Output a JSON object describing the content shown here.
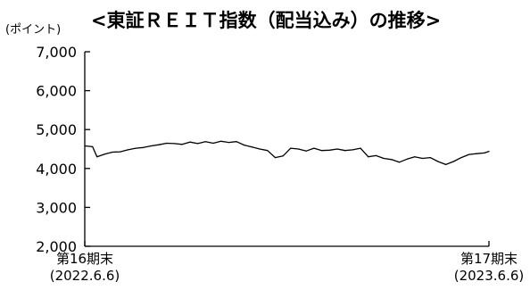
{
  "chart_data": {
    "type": "line",
    "title": "<東証ＲＥＩＴ指数（配当込み）の推移>",
    "unit_label": "(ポイント)",
    "xlabel": "",
    "ylabel": "",
    "ylim": [
      2000,
      7000
    ],
    "y_ticks": [
      {
        "value": 7000,
        "label": "7,000"
      },
      {
        "value": 6000,
        "label": "6,000"
      },
      {
        "value": 5000,
        "label": "5,000"
      },
      {
        "value": 4000,
        "label": "4,000"
      },
      {
        "value": 3000,
        "label": "3,000"
      },
      {
        "value": 2000,
        "label": "2,000"
      }
    ],
    "x_range": [
      "2022-06-06",
      "2023-06-06"
    ],
    "x_labels": [
      {
        "date": "2022-06-06",
        "line1": "第16期末",
        "line2": "(2022.6.6)"
      },
      {
        "date": "2023-06-06",
        "line1": "第17期末",
        "line2": "(2023.6.6)"
      }
    ],
    "grid": false,
    "line_color": "#000000",
    "series": [
      {
        "points": [
          [
            "2022-06-06",
            4580
          ],
          [
            "2022-06-13",
            4560
          ],
          [
            "2022-06-17",
            4300
          ],
          [
            "2022-06-24",
            4370
          ],
          [
            "2022-07-01",
            4420
          ],
          [
            "2022-07-08",
            4430
          ],
          [
            "2022-07-15",
            4480
          ],
          [
            "2022-07-22",
            4520
          ],
          [
            "2022-07-29",
            4540
          ],
          [
            "2022-08-05",
            4580
          ],
          [
            "2022-08-12",
            4610
          ],
          [
            "2022-08-19",
            4650
          ],
          [
            "2022-08-26",
            4640
          ],
          [
            "2022-09-02",
            4620
          ],
          [
            "2022-09-09",
            4680
          ],
          [
            "2022-09-16",
            4640
          ],
          [
            "2022-09-23",
            4690
          ],
          [
            "2022-09-30",
            4650
          ],
          [
            "2022-10-07",
            4700
          ],
          [
            "2022-10-14",
            4670
          ],
          [
            "2022-10-21",
            4690
          ],
          [
            "2022-10-28",
            4600
          ],
          [
            "2022-11-04",
            4550
          ],
          [
            "2022-11-11",
            4500
          ],
          [
            "2022-11-18",
            4460
          ],
          [
            "2022-11-25",
            4280
          ],
          [
            "2022-12-02",
            4320
          ],
          [
            "2022-12-09",
            4520
          ],
          [
            "2022-12-16",
            4500
          ],
          [
            "2022-12-23",
            4450
          ],
          [
            "2022-12-30",
            4520
          ],
          [
            "2023-01-06",
            4460
          ],
          [
            "2023-01-13",
            4470
          ],
          [
            "2023-01-20",
            4500
          ],
          [
            "2023-01-27",
            4460
          ],
          [
            "2023-02-03",
            4480
          ],
          [
            "2023-02-10",
            4520
          ],
          [
            "2023-02-17",
            4300
          ],
          [
            "2023-02-24",
            4330
          ],
          [
            "2023-03-03",
            4260
          ],
          [
            "2023-03-10",
            4230
          ],
          [
            "2023-03-17",
            4160
          ],
          [
            "2023-03-24",
            4240
          ],
          [
            "2023-03-31",
            4300
          ],
          [
            "2023-04-07",
            4260
          ],
          [
            "2023-04-14",
            4280
          ],
          [
            "2023-04-21",
            4180
          ],
          [
            "2023-04-28",
            4100
          ],
          [
            "2023-05-05",
            4180
          ],
          [
            "2023-05-12",
            4280
          ],
          [
            "2023-05-19",
            4360
          ],
          [
            "2023-05-26",
            4380
          ],
          [
            "2023-06-02",
            4400
          ],
          [
            "2023-06-06",
            4440
          ]
        ]
      }
    ]
  }
}
